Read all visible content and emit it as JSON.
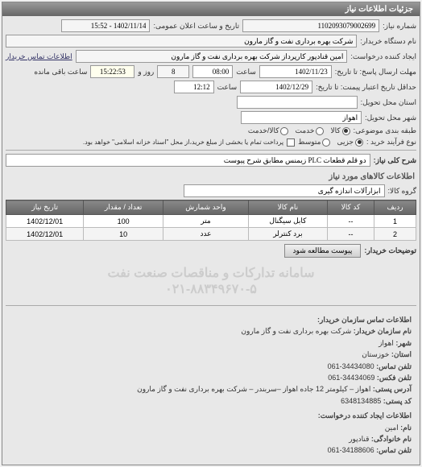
{
  "panelTitle": "جزئیات اطلاعات نیاز",
  "fields": {
    "shomareNiaz_lbl": "شماره نیاز:",
    "shomareNiaz": "1102093079002699",
    "tarikhElan_lbl": "تاریخ و ساعت اعلان عمومی:",
    "tarikhElan": "1402/11/14 - 15:52",
    "namDastgah_lbl": "نام دستگاه خریدار:",
    "namDastgah": "شرکت بهره برداری نفت و گاز مارون",
    "ijadKonande_lbl": "ایجاد کننده درخواست:",
    "ijadKonande": "امین قنادپور کارپرداز شرکت بهره برداری نفت و گاز مارون",
    "tamasKharidar_lbl": "اطلاعات تماس خریدار",
    "mohlatErsal_lbl": "مهلت ارسال پاسخ: تا تاریخ:",
    "mohlatErsalTarikh": "1402/11/23",
    "saat_lbl": "ساعت",
    "mohlatErsalSaat": "08:00",
    "roozMande_lbl": "روز و",
    "roozMande": "8",
    "saatMande": "15:22:53",
    "saatMande_lbl": "ساعت باقی مانده",
    "hadaghalTahvil_lbl": "حداقل تاریخ اعتبار پیمنت: تا تاریخ:",
    "hadaghalTahvilTarikh": "1402/12/29",
    "hadaghalTahvilSaat": "12:12",
    "ostanTahvil_lbl": "استان محل تحویل:",
    "ostanTahvil": "",
    "shahrTahvil_lbl": "شهر محل تحویل:",
    "shahrTahvil": "اهواز",
    "tabagheh_lbl": "طبقه بندی موضوعی:",
    "kala_lbl": "کالا",
    "khedmat_lbl": "خدمت",
    "kalaKhedmat_lbl": "کالا/خدمت",
    "noeFarayand_lbl": "نوع فرآیند خرید :",
    "jozei_lbl": "جزیی",
    "motevasset_lbl": "متوسط",
    "noteFarayand": "پرداخت تمام یا بخشی از مبلغ خرید،از محل \"اسناد خزانه اسلامی\" خواهد بود.",
    "sharhKoli_lbl": "شرح کلی نیاز:",
    "sharhKoli": "دو قلم قطعات PLC زیمنس مطابق شرح پیوست",
    "sectionKala": "اطلاعات کالاهای مورد نیاز",
    "goroohKala_lbl": "گروه کالا:",
    "goroohKala": "ابزارآلات اندازه گیری",
    "tozihKharidar_lbl": "توضیحات خریدار:",
    "btnPeyvast": "پیوست مطالعه شود",
    "watermark1": "سامانه تدارکات و مناقصات صنعت نفت",
    "watermark2": "۰۲۱-۸۸۳۴۹۶۷۰-۵"
  },
  "table": {
    "columns": [
      "ردیف",
      "کد کالا",
      "نام کالا",
      "واحد شمارش",
      "تعداد / مقدار",
      "تاریخ نیاز"
    ],
    "rows": [
      [
        "1",
        "--",
        "کابل سیگنال",
        "متر",
        "100",
        "1402/12/01"
      ],
      [
        "2",
        "--",
        "برد کنترلر",
        "عدد",
        "10",
        "1402/12/01"
      ]
    ],
    "header_bg": "#777",
    "header_color": "#fff"
  },
  "contact": {
    "title": "اطلاعات تماس سازمان خریدار:",
    "sazman_lbl": "نام سازمان خریدار:",
    "sazman": "شرکت بهره برداری نفت و گاز مارون",
    "shahr_lbl": "شهر:",
    "shahr": "اهواز",
    "ostan_lbl": "استان:",
    "ostan": "خوزستان",
    "tel_lbl": "تلفن تماس:",
    "tel": "34434080-061",
    "fax_lbl": "تلفن فکس:",
    "fax": "34434069-061",
    "addr_lbl": "آدرس پستی:",
    "addr": "اهواز – کیلومتر 12 جاده اهواز –سربندر – شرکت بهره برداری نفت و گاز مارون",
    "post_lbl": "کد پستی:",
    "post": "6348134885",
    "ijad_title": "اطلاعات ایجاد کننده درخواست:",
    "nam_lbl": "نام:",
    "nam": "امین",
    "lname_lbl": "نام خانوادگی:",
    "lname": "قنادپور",
    "telIjad_lbl": "تلفن تماس:",
    "telIjad": "34188606-061"
  }
}
